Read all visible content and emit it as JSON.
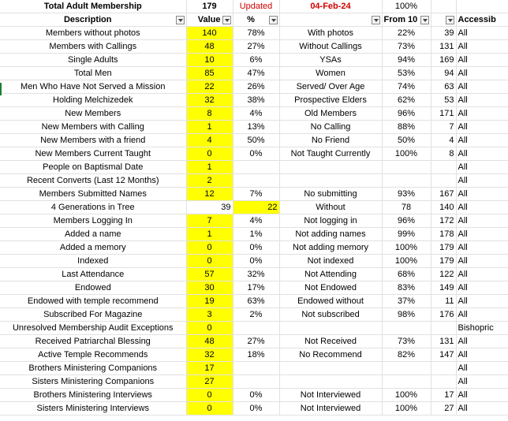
{
  "title_row": {
    "title": "Total Adult Membership",
    "total": "179",
    "updated_label": "Updated",
    "updated_date": "04-Feb-24",
    "percent": "100%"
  },
  "header_row": {
    "description": "Description",
    "value": "Value",
    "percent": "%",
    "from": "From 10",
    "accessible": "Accessib"
  },
  "rows": [
    {
      "desc": "Members without photos",
      "value": "140",
      "pct": "78%",
      "comp": "With photos",
      "comp_pct": "22%",
      "comp_val": "39",
      "access": "All"
    },
    {
      "desc": "Members with Callings",
      "value": "48",
      "pct": "27%",
      "comp": "Without Callings",
      "comp_pct": "73%",
      "comp_val": "131",
      "access": "All"
    },
    {
      "desc": "Single Adults",
      "value": "10",
      "pct": "6%",
      "comp": "YSAs",
      "comp_pct": "94%",
      "comp_val": "169",
      "access": "All"
    },
    {
      "desc": "Total Men",
      "value": "85",
      "pct": "47%",
      "comp": "Women",
      "comp_pct": "53%",
      "comp_val": "94",
      "access": "All"
    },
    {
      "desc": "Men Who Have Not Served a Mission",
      "value": "22",
      "pct": "26%",
      "comp": "Served/ Over Age",
      "comp_pct": "74%",
      "comp_val": "63",
      "access": "All"
    },
    {
      "desc": "Holding Melchizedek",
      "value": "32",
      "pct": "38%",
      "comp": "Prospective Elders",
      "comp_pct": "62%",
      "comp_val": "53",
      "access": "All"
    },
    {
      "desc": "New Members",
      "value": "8",
      "pct": "4%",
      "comp": "Old Members",
      "comp_pct": "96%",
      "comp_val": "171",
      "access": "All"
    },
    {
      "desc": "New Members with Calling",
      "value": "1",
      "pct": "13%",
      "comp": "No Calling",
      "comp_pct": "88%",
      "comp_val": "7",
      "access": "All"
    },
    {
      "desc": "New Members with a friend",
      "value": "4",
      "pct": "50%",
      "comp": "No Friend",
      "comp_pct": "50%",
      "comp_val": "4",
      "access": "All"
    },
    {
      "desc": "New Members Current Taught",
      "value": "0",
      "pct": "0%",
      "comp": "Not Taught Currently",
      "comp_pct": "100%",
      "comp_val": "8",
      "access": "All"
    },
    {
      "desc": "People on Baptismal Date",
      "value": "1",
      "pct": "",
      "comp": "",
      "comp_pct": "",
      "comp_val": "",
      "access": "All"
    },
    {
      "desc": "Recent Converts (Last 12 Months)",
      "value": "2",
      "pct": "",
      "comp": "",
      "comp_pct": "",
      "comp_val": "",
      "access": "All"
    },
    {
      "desc": "Members Submitted Names",
      "value": "12",
      "pct": "7%",
      "comp": "No submitting",
      "comp_pct": "93%",
      "comp_val": "167",
      "access": "All"
    },
    {
      "desc": "4 Generations in Tree",
      "value": "39",
      "pct": "22",
      "comp": "Without",
      "comp_pct": "78",
      "comp_val": "140",
      "access": "All",
      "special": true
    },
    {
      "desc": "Members Logging In",
      "value": "7",
      "pct": "4%",
      "comp": "Not logging in",
      "comp_pct": "96%",
      "comp_val": "172",
      "access": "All"
    },
    {
      "desc": "Added a name",
      "value": "1",
      "pct": "1%",
      "comp": "Not adding names",
      "comp_pct": "99%",
      "comp_val": "178",
      "access": "All"
    },
    {
      "desc": "Added a memory",
      "value": "0",
      "pct": "0%",
      "comp": "Not adding memory",
      "comp_pct": "100%",
      "comp_val": "179",
      "access": "All"
    },
    {
      "desc": "Indexed",
      "value": "0",
      "pct": "0%",
      "comp": "Not indexed",
      "comp_pct": "100%",
      "comp_val": "179",
      "access": "All"
    },
    {
      "desc": "Last Attendance",
      "value": "57",
      "pct": "32%",
      "comp": "Not Attending",
      "comp_pct": "68%",
      "comp_val": "122",
      "access": "All"
    },
    {
      "desc": "Endowed",
      "value": "30",
      "pct": "17%",
      "comp": "Not Endowed",
      "comp_pct": "83%",
      "comp_val": "149",
      "access": "All"
    },
    {
      "desc": "Endowed with temple recommend",
      "value": "19",
      "pct": "63%",
      "comp": "Endowed without",
      "comp_pct": "37%",
      "comp_val": "11",
      "access": "All"
    },
    {
      "desc": "Subscribed For Magazine",
      "value": "3",
      "pct": "2%",
      "comp": "Not subscribed",
      "comp_pct": "98%",
      "comp_val": "176",
      "access": "All"
    },
    {
      "desc": "Unresolved Membership Audit Exceptions",
      "value": "0",
      "pct": "",
      "comp": "",
      "comp_pct": "",
      "comp_val": "",
      "access": "Bishopric"
    },
    {
      "desc": "Received Patriarchal Blessing",
      "value": "48",
      "pct": "27%",
      "comp": "Not Received",
      "comp_pct": "73%",
      "comp_val": "131",
      "access": "All"
    },
    {
      "desc": "Active Temple Recommends",
      "value": "32",
      "pct": "18%",
      "comp": "No Recommend",
      "comp_pct": "82%",
      "comp_val": "147",
      "access": "All"
    },
    {
      "desc": "Brothers Ministering Companions",
      "value": "17",
      "pct": "",
      "comp": "",
      "comp_pct": "",
      "comp_val": "",
      "access": "All"
    },
    {
      "desc": "Sisters Ministering Companions",
      "value": "27",
      "pct": "",
      "comp": "",
      "comp_pct": "",
      "comp_val": "",
      "access": "All"
    },
    {
      "desc": "Brothers Ministering Interviews",
      "value": "0",
      "pct": "0%",
      "comp": "Not Interviewed",
      "comp_pct": "100%",
      "comp_val": "17",
      "access": "All"
    },
    {
      "desc": "Sisters  Ministering Interviews",
      "value": "0",
      "pct": "0%",
      "comp": "Not Interviewed",
      "comp_pct": "100%",
      "comp_val": "27",
      "access": "All"
    }
  ],
  "colors": {
    "highlight": "#ffff00",
    "updated": "#d00000",
    "gridline": "#e1e1e1"
  }
}
